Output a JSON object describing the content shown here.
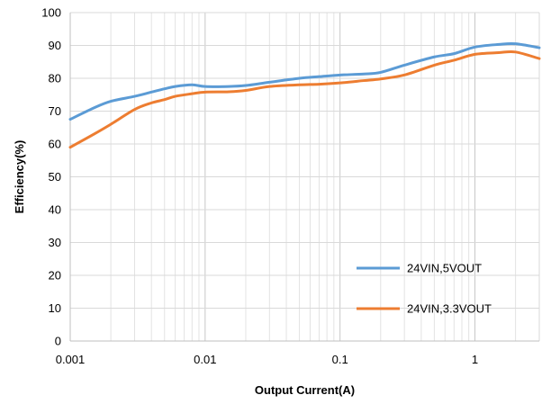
{
  "chart_data": {
    "type": "line",
    "xlabel": "Output Current(A)",
    "ylabel": "Efficiency(%)",
    "x_scale": "log",
    "xlim": [
      0.001,
      3
    ],
    "ylim": [
      0,
      100
    ],
    "x_ticks": [
      0.001,
      0.01,
      0.1,
      1
    ],
    "x_tick_labels": [
      "0.001",
      "0.01",
      "0.1",
      "1"
    ],
    "y_ticks": [
      0,
      10,
      20,
      30,
      40,
      50,
      60,
      70,
      80,
      90,
      100
    ],
    "y_tick_labels": [
      "0",
      "10",
      "20",
      "30",
      "40",
      "50",
      "60",
      "70",
      "80",
      "90",
      "100"
    ],
    "grid": {
      "major": true,
      "minor_x": true
    },
    "legend_position": "bottom-right",
    "series": [
      {
        "name": "24VIN,5VOUT",
        "color": "#5B9BD5",
        "x": [
          0.001,
          0.0015,
          0.002,
          0.003,
          0.004,
          0.005,
          0.006,
          0.008,
          0.01,
          0.015,
          0.02,
          0.03,
          0.05,
          0.07,
          0.1,
          0.15,
          0.2,
          0.3,
          0.5,
          0.7,
          1,
          1.5,
          2,
          3
        ],
        "y": [
          67.5,
          71.0,
          73.0,
          74.5,
          75.8,
          76.8,
          77.5,
          78.0,
          77.5,
          77.5,
          77.8,
          78.8,
          80.0,
          80.5,
          81.0,
          81.3,
          81.8,
          84.0,
          86.5,
          87.5,
          89.5,
          90.3,
          90.5,
          89.3
        ]
      },
      {
        "name": "24VIN,3.3VOUT",
        "color": "#ED7D31",
        "x": [
          0.001,
          0.0015,
          0.002,
          0.003,
          0.004,
          0.005,
          0.006,
          0.008,
          0.01,
          0.015,
          0.02,
          0.03,
          0.05,
          0.07,
          0.1,
          0.15,
          0.2,
          0.3,
          0.5,
          0.7,
          1,
          1.5,
          2,
          3
        ],
        "y": [
          59.0,
          63.0,
          66.0,
          70.5,
          72.5,
          73.5,
          74.5,
          75.3,
          75.8,
          75.9,
          76.3,
          77.5,
          78.0,
          78.2,
          78.6,
          79.3,
          79.8,
          81.0,
          84.0,
          85.5,
          87.3,
          87.8,
          88.0,
          86.0
        ]
      }
    ]
  }
}
